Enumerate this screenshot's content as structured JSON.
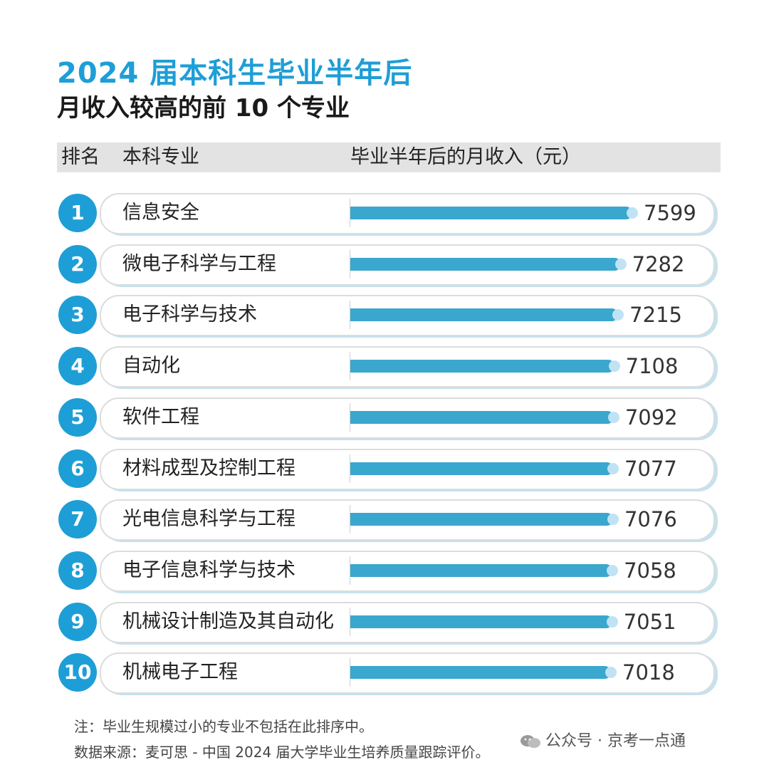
{
  "title_line1": "2024 届本科生毕业半年后",
  "title_line2": "月收入较高的前 10 个专业",
  "header": {
    "rank": "排名",
    "major": "本科专业",
    "income": "毕业半年后的月收入（元）"
  },
  "colors": {
    "accent": "#1e9ed6",
    "bar": "#3aa7ce",
    "header_bg": "#e3e3e3"
  },
  "chart_data": {
    "type": "bar",
    "orientation": "horizontal",
    "title": "2024 届本科生毕业半年后 月收入较高的前 10 个专业",
    "ylabel": "毕业半年后的月收入（元）",
    "ranks": [
      "1",
      "2",
      "3",
      "4",
      "5",
      "6",
      "7",
      "8",
      "9",
      "10"
    ],
    "categories": [
      "信息安全",
      "微电子科学与工程",
      "电子科学与技术",
      "自动化",
      "软件工程",
      "材料成型及控制工程",
      "光电信息科学与工程",
      "电子信息科学与技术",
      "机械设计制造及其自动化",
      "机械电子工程"
    ],
    "values": [
      7599,
      7282,
      7215,
      7108,
      7092,
      7077,
      7076,
      7058,
      7051,
      7018
    ],
    "value_labels": [
      "7599",
      "7282",
      "7215",
      "7108",
      "7092",
      "7077",
      "7076",
      "7058",
      "7051",
      "7018"
    ],
    "grid": false,
    "legend": "none"
  },
  "footer": {
    "note": "注：毕业生规模过小的专业不包括在此排序中。",
    "source": "数据来源：麦可思 - 中国 2024 届大学毕业生培养质量跟踪评价。",
    "wechat": "公众号 · 京考一点通"
  }
}
